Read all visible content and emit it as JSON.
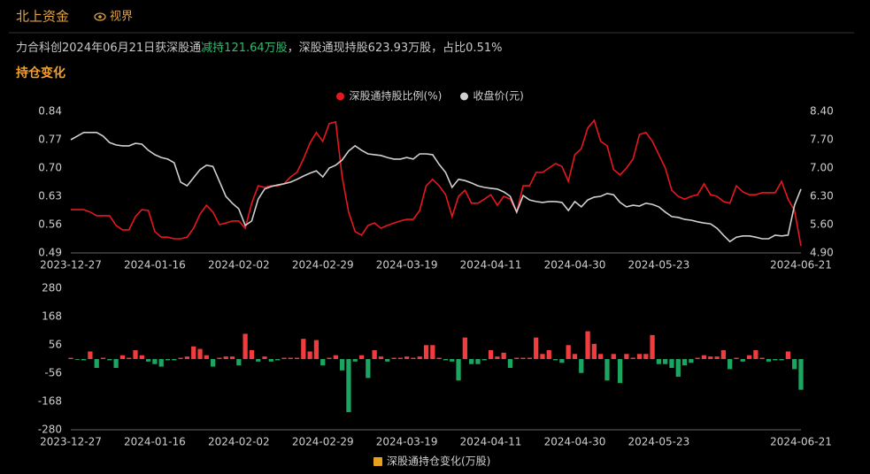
{
  "header": {
    "title": "北上资金",
    "link": "视界",
    "summary": [
      "力合科创2024年06月21日获深股通",
      "减持121.64万股",
      "，深股通现持股623.93万股，占比0.51%"
    ],
    "section": "持仓变化"
  },
  "chart_data": [
    {
      "type": "line",
      "legend": "top",
      "grid": false,
      "categories": [
        "2023-12-27",
        null,
        null,
        null,
        null,
        null,
        null,
        null,
        null,
        null,
        null,
        null,
        null,
        "2024-01-16",
        null,
        null,
        null,
        null,
        null,
        null,
        null,
        null,
        null,
        null,
        null,
        null,
        "2024-02-02",
        null,
        null,
        null,
        null,
        null,
        null,
        null,
        null,
        null,
        null,
        null,
        null,
        "2024-02-29",
        null,
        null,
        null,
        null,
        null,
        null,
        null,
        null,
        null,
        null,
        null,
        null,
        "2024-03-19",
        null,
        null,
        null,
        null,
        null,
        null,
        null,
        null,
        null,
        null,
        null,
        null,
        "2024-04-11",
        null,
        null,
        null,
        null,
        null,
        null,
        null,
        null,
        null,
        null,
        null,
        null,
        "2024-04-30",
        null,
        null,
        null,
        null,
        null,
        null,
        null,
        null,
        null,
        null,
        null,
        null,
        "2024-05-23",
        null,
        null,
        null,
        null,
        null,
        null,
        null,
        null,
        null,
        null,
        null,
        null,
        null,
        null,
        null,
        null,
        null,
        null,
        null,
        null,
        null,
        "2024-06-21"
      ],
      "ylim": [
        0.49,
        0.84
      ],
      "yticks": [
        0.49,
        0.56,
        0.63,
        {
          "value": 0.7,
          "label": "0.70"
        },
        0.77,
        0.84
      ],
      "y2lim": [
        4.9,
        8.4
      ],
      "y2ticks": [
        {
          "value": 4.9,
          "label": "4.90"
        },
        {
          "value": 5.6,
          "label": "5.60"
        },
        {
          "value": 6.3,
          "label": "6.30"
        },
        {
          "value": 7.0,
          "label": "7.00"
        },
        {
          "value": 7.7,
          "label": "7.70"
        },
        {
          "value": 8.4,
          "label": "8.40"
        }
      ],
      "series": [
        {
          "name": "深股通持股比例(%)",
          "color": "#e8171f",
          "axis": "y",
          "values": [
            0.597,
            0.597,
            0.597,
            0.591,
            0.582,
            0.582,
            0.582,
            0.558,
            0.547,
            0.547,
            0.58,
            0.597,
            0.595,
            0.543,
            0.529,
            0.529,
            0.525,
            0.525,
            0.529,
            0.551,
            0.586,
            0.608,
            0.591,
            0.56,
            0.564,
            0.569,
            0.569,
            0.551,
            0.613,
            0.656,
            0.652,
            0.656,
            0.656,
            0.661,
            0.678,
            0.689,
            0.722,
            0.761,
            0.788,
            0.766,
            0.81,
            0.814,
            0.678,
            0.591,
            0.543,
            0.534,
            0.558,
            0.564,
            0.551,
            0.558,
            0.564,
            0.569,
            0.573,
            0.573,
            0.595,
            0.656,
            0.672,
            0.656,
            0.634,
            0.58,
            0.63,
            0.645,
            0.613,
            0.613,
            0.623,
            0.634,
            0.608,
            0.63,
            0.623,
            0.591,
            0.656,
            0.656,
            0.689,
            0.689,
            0.7,
            0.711,
            0.704,
            0.667,
            0.733,
            0.748,
            0.799,
            0.818,
            0.766,
            0.755,
            0.696,
            0.683,
            0.7,
            0.722,
            0.783,
            0.788,
            0.766,
            0.733,
            0.7,
            0.645,
            0.63,
            0.623,
            0.63,
            0.634,
            0.661,
            0.634,
            0.63,
            0.617,
            0.613,
            0.656,
            0.641,
            0.634,
            0.634,
            0.639,
            0.639,
            0.639,
            0.667,
            0.623,
            0.595,
            0.507
          ]
        },
        {
          "name": "收盘价(元)",
          "color": "#d0d0d0",
          "axis": "y2",
          "values": [
            7.7,
            7.79,
            7.88,
            7.88,
            7.88,
            7.79,
            7.63,
            7.57,
            7.55,
            7.55,
            7.61,
            7.59,
            7.44,
            7.33,
            7.26,
            7.22,
            7.13,
            6.65,
            6.56,
            6.76,
            6.96,
            7.07,
            7.04,
            6.67,
            6.3,
            6.13,
            5.99,
            5.58,
            5.69,
            6.23,
            6.48,
            6.54,
            6.58,
            6.61,
            6.65,
            6.72,
            6.8,
            6.87,
            6.93,
            6.78,
            7.0,
            7.07,
            7.2,
            7.42,
            7.55,
            7.44,
            7.35,
            7.33,
            7.31,
            7.26,
            7.22,
            7.22,
            7.26,
            7.22,
            7.35,
            7.35,
            7.33,
            7.09,
            6.89,
            6.52,
            6.72,
            6.69,
            6.63,
            6.56,
            6.52,
            6.5,
            6.48,
            6.41,
            6.3,
            5.91,
            6.32,
            6.21,
            6.17,
            6.15,
            6.17,
            6.17,
            6.15,
            5.95,
            6.17,
            6.04,
            6.21,
            6.28,
            6.3,
            6.37,
            6.34,
            6.15,
            6.04,
            6.08,
            6.06,
            6.13,
            6.1,
            6.04,
            5.91,
            5.8,
            5.78,
            5.73,
            5.71,
            5.67,
            5.64,
            5.62,
            5.51,
            5.34,
            5.18,
            5.29,
            5.32,
            5.32,
            5.29,
            5.25,
            5.25,
            5.34,
            5.32,
            5.34,
            6.08,
            6.48
          ]
        }
      ]
    },
    {
      "type": "bar",
      "legend": "bottom",
      "grid": false,
      "categories": [
        "2023-12-27",
        null,
        null,
        null,
        null,
        null,
        null,
        null,
        null,
        null,
        null,
        null,
        null,
        "2024-01-16",
        null,
        null,
        null,
        null,
        null,
        null,
        null,
        null,
        null,
        null,
        null,
        null,
        "2024-02-02",
        null,
        null,
        null,
        null,
        null,
        null,
        null,
        null,
        null,
        null,
        null,
        null,
        "2024-02-29",
        null,
        null,
        null,
        null,
        null,
        null,
        null,
        null,
        null,
        null,
        null,
        null,
        "2024-03-19",
        null,
        null,
        null,
        null,
        null,
        null,
        null,
        null,
        null,
        null,
        null,
        null,
        "2024-04-11",
        null,
        null,
        null,
        null,
        null,
        null,
        null,
        null,
        null,
        null,
        null,
        null,
        "2024-04-30",
        null,
        null,
        null,
        null,
        null,
        null,
        null,
        null,
        null,
        null,
        null,
        null,
        "2024-05-23",
        null,
        null,
        null,
        null,
        null,
        null,
        null,
        null,
        null,
        null,
        null,
        null,
        null,
        null,
        null,
        null,
        null,
        null,
        null,
        null,
        null,
        "2024-06-21"
      ],
      "ylim": [
        -280,
        280
      ],
      "yticks": [
        -280,
        -168,
        -56,
        56,
        168,
        280
      ],
      "series": [
        {
          "name": "深股通持仓变化(万股)",
          "color": "#e8a020",
          "positive_color": "#f03c3c",
          "negative_color": "#1ba561",
          "values": [
            5,
            -3,
            -5,
            30,
            -35,
            5,
            -5,
            -35,
            15,
            5,
            35,
            15,
            -10,
            -20,
            -30,
            -5,
            -5,
            5,
            10,
            50,
            40,
            15,
            -30,
            5,
            10,
            10,
            -25,
            100,
            35,
            -10,
            10,
            -10,
            -5,
            5,
            5,
            5,
            80,
            30,
            75,
            -25,
            5,
            15,
            -45,
            -210,
            -10,
            15,
            -75,
            35,
            10,
            -10,
            5,
            5,
            10,
            5,
            10,
            55,
            55,
            5,
            -5,
            -10,
            -85,
            85,
            -20,
            -20,
            -5,
            35,
            10,
            25,
            -35,
            5,
            5,
            5,
            85,
            20,
            35,
            -5,
            -15,
            55,
            20,
            -55,
            110,
            60,
            20,
            -85,
            20,
            -95,
            20,
            5,
            20,
            20,
            95,
            -20,
            -20,
            -35,
            -70,
            -25,
            -15,
            5,
            15,
            10,
            10,
            35,
            -40,
            5,
            -10,
            15,
            35,
            5,
            -10,
            -5,
            -5,
            30,
            -40,
            -121.64
          ]
        }
      ]
    }
  ]
}
